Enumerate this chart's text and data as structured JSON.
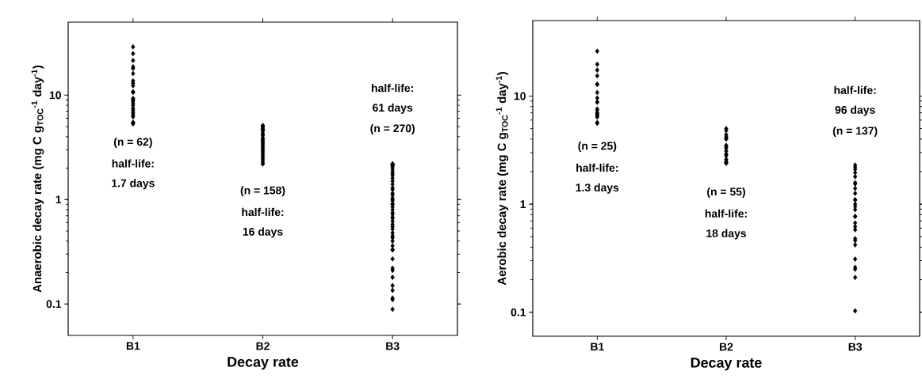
{
  "chart_data": [
    {
      "type": "scatter",
      "ylabel": "Anaerobic decay rate (mg C g$_{TOC}$$^{-1}$ day$^{-1}$)",
      "xlabel": "Decay rate",
      "categories": [
        "B1",
        "B2",
        "B3"
      ],
      "ylim": [
        0.05,
        50
      ],
      "yticks": [
        0.1,
        1,
        10
      ],
      "log": "y",
      "marker": "diamond",
      "series": [
        {
          "color": "#000000",
          "x": [
            "B1",
            "B1",
            "B1",
            "B1",
            "B1",
            "B1",
            "B1",
            "B1",
            "B1",
            "B1",
            "B1",
            "B1",
            "B1",
            "B1",
            "B1",
            "B1",
            "B1",
            "B1",
            "B1",
            "B1",
            "B1",
            "B1",
            "B1",
            "B1",
            "B1",
            "B1",
            "B1",
            "B2",
            "B2",
            "B2",
            "B2",
            "B2",
            "B2",
            "B2",
            "B2",
            "B2",
            "B2",
            "B2",
            "B2",
            "B2",
            "B2",
            "B2",
            "B2",
            "B2",
            "B2",
            "B2",
            "B2",
            "B2",
            "B2",
            "B2",
            "B2",
            "B2",
            "B2",
            "B2",
            "B2",
            "B2",
            "B2",
            "B3",
            "B3",
            "B3",
            "B3",
            "B3",
            "B3",
            "B3",
            "B3",
            "B3",
            "B3",
            "B3",
            "B3",
            "B3",
            "B3",
            "B3",
            "B3",
            "B3",
            "B3",
            "B3",
            "B3",
            "B3",
            "B3",
            "B3",
            "B3",
            "B3",
            "B3",
            "B3",
            "B3",
            "B3",
            "B3",
            "B3",
            "B3",
            "B3",
            "B3",
            "B3",
            "B3",
            "B3",
            "B3",
            "B3",
            "B3",
            "B3",
            "B3",
            "B3",
            "B3",
            "B3",
            "B3",
            "B3",
            "B3"
          ],
          "values": [
            29,
            25,
            21.5,
            18.7,
            18,
            16.1,
            13.7,
            13,
            12.3,
            10.7,
            10.7,
            10.7,
            9.2,
            8.9,
            9.3,
            8.8,
            8.4,
            8.0,
            7.2,
            6.4,
            6.9,
            6.7,
            5.4,
            5.3,
            5.5,
            6.2,
            7.5,
            5.1,
            5.0,
            5.1,
            5.0,
            4.6,
            4.7,
            4.8,
            4.5,
            4.3,
            4.2,
            4.1,
            3.9,
            3.8,
            3.7,
            3.6,
            3.5,
            3.4,
            3.3,
            3.2,
            3.1,
            3.0,
            2.9,
            2.8,
            2.7,
            2.6,
            2.5,
            2.4,
            2.3,
            2.2,
            2.2,
            0.089,
            0.114,
            0.11,
            0.135,
            0.15,
            0.18,
            0.21,
            0.22,
            0.27,
            0.33,
            0.36,
            0.33,
            0.48,
            0.43,
            0.55,
            0.66,
            0.91,
            1.03,
            1.25,
            1.77,
            2.14,
            2.2,
            2.18,
            0.4,
            0.45,
            0.52,
            0.58,
            0.62,
            0.68,
            0.72,
            0.75,
            0.8,
            0.85,
            0.9,
            0.97,
            1.1,
            1.15,
            1.3,
            1.4,
            1.5,
            1.6,
            1.7,
            1.85,
            1.95,
            2.05,
            2.15,
            2.1,
            1.0
          ]
        }
      ],
      "annotations": [
        "(n = 62)",
        "half-life:",
        "1.7 days",
        "(n = 158)",
        "half-life:",
        "16 days",
        "half-life:",
        "61 days",
        "(n = 270)"
      ]
    },
    {
      "type": "scatter",
      "ylabel": "Aerobic decay rate (mg C g$_{TOC}$$^{-1}$ day$^{-1}$)",
      "xlabel": "Decay rate",
      "categories": [
        "B1",
        "B2",
        "B3"
      ],
      "ylim": [
        0.06,
        50
      ],
      "yticks": [
        0.1,
        1,
        10
      ],
      "log": "y",
      "marker": "diamond",
      "series": [
        {
          "color": "#000000",
          "x": [
            "B1",
            "B1",
            "B1",
            "B1",
            "B1",
            "B1",
            "B1",
            "B1",
            "B1",
            "B1",
            "B1",
            "B1",
            "B1",
            "B1",
            "B1",
            "B1",
            "B1",
            "B1",
            "B1",
            "B2",
            "B2",
            "B2",
            "B2",
            "B2",
            "B2",
            "B2",
            "B2",
            "B2",
            "B2",
            "B2",
            "B2",
            "B2",
            "B2",
            "B2",
            "B2",
            "B2",
            "B2",
            "B3",
            "B3",
            "B3",
            "B3",
            "B3",
            "B3",
            "B3",
            "B3",
            "B3",
            "B3",
            "B3",
            "B3",
            "B3",
            "B3",
            "B3",
            "B3",
            "B3",
            "B3",
            "B3",
            "B3",
            "B3",
            "B3",
            "B3",
            "B3",
            "B3",
            "B3",
            "B3"
          ],
          "values": [
            26,
            19.7,
            17.4,
            15.4,
            12.8,
            12.9,
            10.8,
            9.6,
            8.8,
            8.8,
            7.6,
            7.4,
            6.9,
            7.0,
            6.6,
            6.4,
            5.7,
            5.6,
            6.7,
            5.0,
            4.8,
            4.4,
            4.2,
            4.1,
            4.0,
            3.5,
            3.4,
            3.3,
            3.1,
            2.9,
            2.8,
            2.9,
            2.6,
            2.5,
            2.4,
            2.4,
            2.45,
            0.103,
            0.25,
            0.26,
            0.21,
            0.31,
            0.48,
            0.42,
            0.46,
            0.58,
            0.62,
            0.67,
            0.77,
            0.77,
            0.95,
            1.0,
            0.89,
            1.09,
            1.4,
            1.54,
            1.58,
            1.8,
            1.96,
            2.1,
            2.3,
            2.2,
            1.26,
            1.1
          ]
        }
      ],
      "annotations": [
        "(n = 25)",
        "half-life:",
        "1.3 days",
        "(n = 55)",
        "half-life:",
        "18 days",
        "half-life:",
        "96 days",
        "(n = 137)"
      ]
    }
  ]
}
